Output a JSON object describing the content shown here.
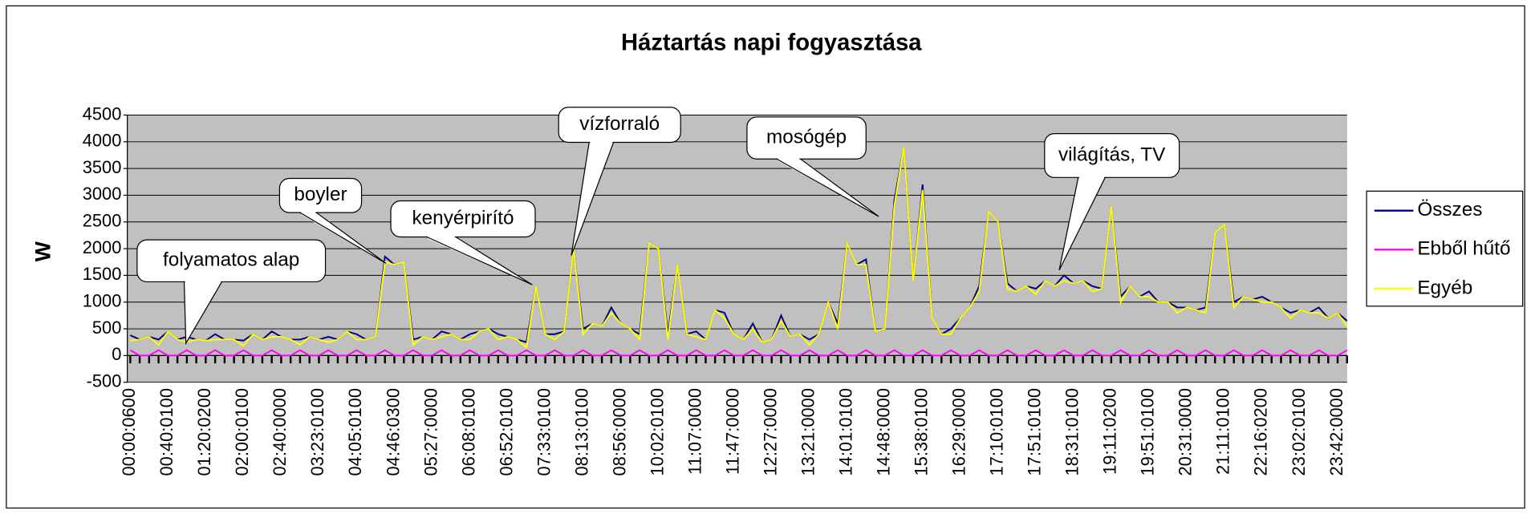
{
  "chart_data": {
    "type": "line",
    "title": "Háztartás napi fogyasztása",
    "y_label": "W",
    "categories": [
      "00:00:0600",
      null,
      null,
      null,
      "00:40:0100",
      null,
      null,
      null,
      "01:20:0200",
      null,
      null,
      null,
      "02:00:0100",
      null,
      null,
      null,
      "02:40:0000",
      null,
      null,
      null,
      "03:23:0100",
      null,
      null,
      null,
      "04:05:0100",
      null,
      null,
      null,
      "04:46:0300",
      null,
      null,
      null,
      "05:27:0000",
      null,
      null,
      null,
      "06:08:0100",
      null,
      null,
      null,
      "06:52:0100",
      null,
      null,
      null,
      "07:33:0100",
      null,
      null,
      null,
      "08:13:0100",
      null,
      null,
      null,
      "08:56:0000",
      null,
      null,
      null,
      "10:02:0100",
      null,
      null,
      null,
      "11:07:0000",
      null,
      null,
      null,
      "11:47:0000",
      null,
      null,
      null,
      "12:27:0000",
      null,
      null,
      null,
      "13:21:0000",
      null,
      null,
      null,
      "14:01:0100",
      null,
      null,
      null,
      "14:48:0000",
      null,
      null,
      null,
      "15:38:0100",
      null,
      null,
      null,
      "16:29:0000",
      null,
      null,
      null,
      "17:10:0100",
      null,
      null,
      null,
      "17:51:0100",
      null,
      null,
      null,
      "18:31:0100",
      null,
      null,
      null,
      "19:11:0200",
      null,
      null,
      null,
      "19:51:0100",
      null,
      null,
      null,
      "20:31:0000",
      null,
      null,
      null,
      "21:11:0100",
      null,
      null,
      null,
      "22:16:0200",
      null,
      null,
      null,
      "23:02:0100",
      null,
      null,
      null,
      "23:42:0000",
      null
    ],
    "series": [
      {
        "name": "Összes",
        "color": "#000080",
        "values": [
          380,
          300,
          350,
          300,
          450,
          300,
          350,
          300,
          280,
          400,
          300,
          300,
          280,
          400,
          300,
          450,
          350,
          300,
          300,
          350,
          300,
          350,
          300,
          450,
          400,
          300,
          350,
          1850,
          1700,
          1750,
          300,
          350,
          300,
          450,
          400,
          300,
          400,
          450,
          500,
          400,
          350,
          300,
          250,
          1300,
          400,
          400,
          450,
          2000,
          500,
          600,
          550,
          900,
          600,
          500,
          400,
          2100,
          2000,
          400,
          1700,
          400,
          450,
          300,
          850,
          800,
          400,
          300,
          600,
          250,
          300,
          750,
          350,
          400,
          300,
          400,
          1000,
          600,
          2100,
          1700,
          1800,
          450,
          500,
          2900,
          3900,
          1400,
          3200,
          700,
          400,
          500,
          700,
          900,
          1300,
          2700,
          2500,
          1350,
          1200,
          1300,
          1250,
          1400,
          1300,
          1500,
          1350,
          1400,
          1300,
          1250,
          2800,
          1100,
          1300,
          1100,
          1200,
          1000,
          1000,
          900,
          900,
          850,
          900,
          2300,
          2450,
          1000,
          1100,
          1050,
          1100,
          1000,
          900,
          800,
          850,
          800,
          900,
          700,
          800,
          650
        ]
      },
      {
        "name": "Ebből hűtő",
        "color": "#ff00ff",
        "values": [
          100,
          0,
          0,
          100,
          0,
          0,
          100,
          0,
          0,
          100,
          0,
          0,
          100,
          0,
          0,
          100,
          0,
          0,
          100,
          0,
          0,
          100,
          0,
          0,
          100,
          0,
          0,
          100,
          0,
          0,
          100,
          0,
          0,
          100,
          0,
          0,
          100,
          0,
          0,
          100,
          0,
          0,
          100,
          0,
          0,
          100,
          0,
          0,
          100,
          0,
          0,
          100,
          0,
          0,
          100,
          0,
          0,
          100,
          0,
          0,
          100,
          0,
          0,
          100,
          0,
          0,
          100,
          0,
          0,
          100,
          0,
          0,
          100,
          0,
          0,
          100,
          0,
          0,
          100,
          0,
          0,
          100,
          0,
          0,
          100,
          0,
          0,
          100,
          0,
          0,
          100,
          0,
          0,
          100,
          0,
          0,
          100,
          0,
          0,
          100,
          0,
          0,
          100,
          0,
          0,
          100,
          0,
          0,
          100,
          0,
          0,
          100,
          0,
          0,
          100,
          0,
          0,
          100,
          0,
          0,
          100,
          0,
          0,
          100,
          0,
          0,
          100,
          0,
          0,
          100
        ]
      },
      {
        "name": "Egyéb",
        "color": "#ffff00",
        "values": [
          280,
          300,
          350,
          200,
          450,
          300,
          250,
          300,
          280,
          300,
          300,
          300,
          180,
          400,
          300,
          350,
          350,
          300,
          200,
          350,
          300,
          250,
          300,
          450,
          300,
          300,
          350,
          1750,
          1700,
          1750,
          200,
          350,
          300,
          350,
          400,
          300,
          300,
          450,
          500,
          300,
          350,
          300,
          150,
          1300,
          400,
          300,
          450,
          2000,
          400,
          600,
          550,
          800,
          600,
          500,
          300,
          2100,
          2000,
          300,
          1700,
          400,
          350,
          300,
          850,
          700,
          400,
          300,
          500,
          250,
          300,
          650,
          350,
          400,
          200,
          400,
          1000,
          500,
          2100,
          1700,
          1700,
          450,
          500,
          2800,
          3900,
          1400,
          3100,
          700,
          400,
          400,
          700,
          900,
          1200,
          2700,
          2500,
          1250,
          1200,
          1300,
          1150,
          1400,
          1300,
          1400,
          1350,
          1400,
          1200,
          1250,
          2800,
          1000,
          1300,
          1100,
          1100,
          1000,
          1000,
          800,
          900,
          850,
          800,
          2300,
          2450,
          900,
          1100,
          1050,
          1000,
          1000,
          900,
          700,
          850,
          800,
          800,
          700,
          800,
          550
        ]
      }
    ],
    "ylim": [
      -500,
      4500
    ],
    "yticks": [
      -500,
      0,
      500,
      1000,
      1500,
      2000,
      2500,
      3000,
      3500,
      4000,
      4500
    ],
    "grid": true,
    "legend": "right",
    "annotations": [
      "folyamatos alap",
      "boyler",
      "kenyérpirító",
      "vízforraló",
      "mosógép",
      "világítás, TV"
    ]
  }
}
